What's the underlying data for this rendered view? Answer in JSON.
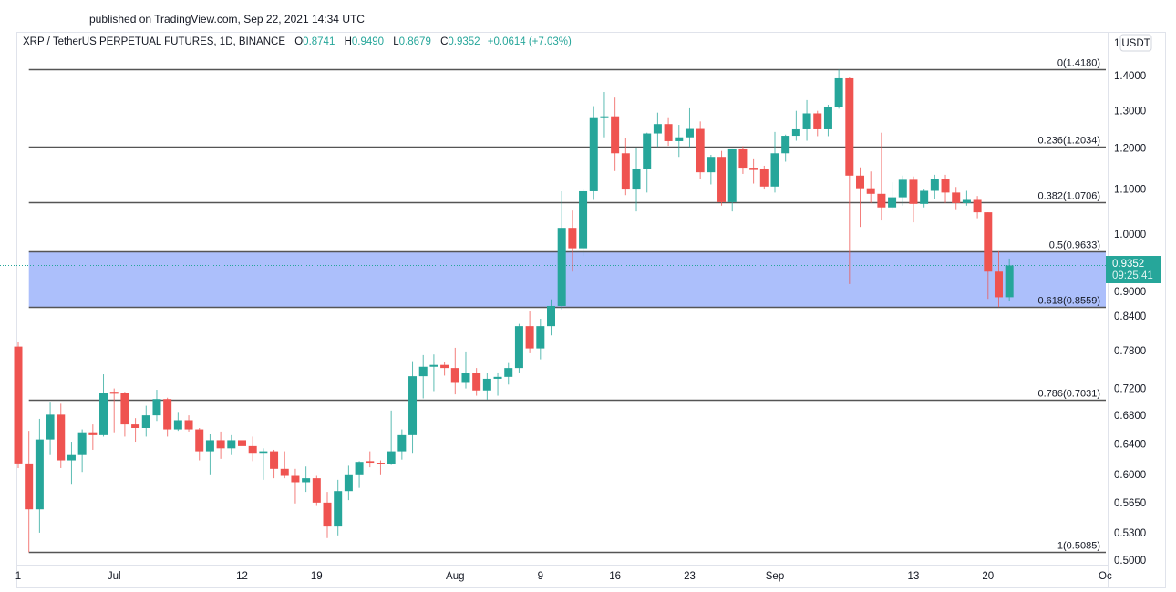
{
  "header": {
    "published": "published on TradingView.com, Sep 22, 2021 14:34 UTC"
  },
  "legend": {
    "symbol": "XRP / TetherUS PERPETUAL FUTURES, 1D, BINANCE",
    "o_label": "O",
    "o": "0.8741",
    "h_label": "H",
    "h": "0.9490",
    "l_label": "L",
    "l": "0.8679",
    "c_label": "C",
    "c": "0.9352",
    "change": "+0.0614 (+7.03%)"
  },
  "price_axis": {
    "currency_prefix": "1",
    "currency": "USDT",
    "last_price": "0.9352",
    "countdown": "09:25:41"
  },
  "colors": {
    "up": "#26a69a",
    "down": "#ef5350",
    "fib_line": "#555555",
    "fib_zone": "#a8bcfb",
    "last_price_line": "#26a69a"
  },
  "chart_data": {
    "type": "candlestick",
    "y_scale": "log",
    "ylim": [
      0.5,
      1.42
    ],
    "grid": false,
    "y_ticks": [
      "1.4000",
      "1.3000",
      "1.2000",
      "1.1000",
      "1.0000",
      "0.9000",
      "0.8400",
      "0.7800",
      "0.7200",
      "0.6800",
      "0.6400",
      "0.6000",
      "0.5650",
      "0.5300",
      "0.5000"
    ],
    "x_ticks": [
      {
        "label": "1",
        "date": "2021-06-21"
      },
      {
        "label": "Jul",
        "date": "2021-06-30"
      },
      {
        "label": "12",
        "date": "2021-07-12"
      },
      {
        "label": "19",
        "date": "2021-07-19"
      },
      {
        "label": "Aug",
        "date": "2021-08-01"
      },
      {
        "label": "9",
        "date": "2021-08-09"
      },
      {
        "label": "16",
        "date": "2021-08-16"
      },
      {
        "label": "23",
        "date": "2021-08-23"
      },
      {
        "label": "Sep",
        "date": "2021-08-31"
      },
      {
        "label": "13",
        "date": "2021-09-13"
      },
      {
        "label": "20",
        "date": "2021-09-20"
      },
      {
        "label": "Oc",
        "date": "2021-10-01"
      }
    ],
    "fib_levels": [
      {
        "label": "0(1.4180)",
        "price": 1.418
      },
      {
        "label": "0.236(1.2034)",
        "price": 1.2034
      },
      {
        "label": "0.382(1.0706)",
        "price": 1.0706
      },
      {
        "label": "0.5(0.9633)",
        "price": 0.9633
      },
      {
        "label": "0.618(0.8559)",
        "price": 0.8559
      },
      {
        "label": "0.786(0.7031)",
        "price": 0.7031
      },
      {
        "label": "1(0.5085)",
        "price": 0.5085
      }
    ],
    "fib_zone": [
      0.8559,
      0.9633
    ],
    "fib_start_date": "2021-06-22",
    "last_price": 0.9352,
    "candles_columns": [
      "date",
      "open",
      "high",
      "low",
      "close"
    ],
    "candles": [
      [
        "2021-06-21",
        0.787,
        0.795,
        0.608,
        0.614
      ],
      [
        "2021-06-22",
        0.614,
        0.658,
        0.5085,
        0.557
      ],
      [
        "2021-06-23",
        0.557,
        0.675,
        0.53,
        0.646
      ],
      [
        "2021-06-24",
        0.646,
        0.7,
        0.625,
        0.681
      ],
      [
        "2021-06-25",
        0.681,
        0.697,
        0.608,
        0.618
      ],
      [
        "2021-06-26",
        0.618,
        0.643,
        0.588,
        0.625
      ],
      [
        "2021-06-27",
        0.625,
        0.66,
        0.603,
        0.656
      ],
      [
        "2021-06-28",
        0.656,
        0.667,
        0.632,
        0.652
      ],
      [
        "2021-06-29",
        0.652,
        0.742,
        0.65,
        0.713
      ],
      [
        "2021-06-30",
        0.715,
        0.72,
        0.656,
        0.712
      ],
      [
        "2021-07-01",
        0.713,
        0.715,
        0.65,
        0.667
      ],
      [
        "2021-07-02",
        0.667,
        0.676,
        0.643,
        0.662
      ],
      [
        "2021-07-03",
        0.662,
        0.694,
        0.65,
        0.68
      ],
      [
        "2021-07-04",
        0.68,
        0.718,
        0.672,
        0.704
      ],
      [
        "2021-07-05",
        0.704,
        0.706,
        0.65,
        0.66
      ],
      [
        "2021-07-06",
        0.66,
        0.685,
        0.658,
        0.673
      ],
      [
        "2021-07-07",
        0.673,
        0.68,
        0.657,
        0.66
      ],
      [
        "2021-07-08",
        0.66,
        0.662,
        0.618,
        0.63
      ],
      [
        "2021-07-09",
        0.63,
        0.654,
        0.6,
        0.645
      ],
      [
        "2021-07-10",
        0.645,
        0.657,
        0.62,
        0.634
      ],
      [
        "2021-07-11",
        0.634,
        0.652,
        0.625,
        0.645
      ],
      [
        "2021-07-12",
        0.645,
        0.667,
        0.626,
        0.637
      ],
      [
        "2021-07-13",
        0.637,
        0.65,
        0.617,
        0.628
      ],
      [
        "2021-07-14",
        0.628,
        0.634,
        0.593,
        0.63
      ],
      [
        "2021-07-15",
        0.63,
        0.632,
        0.595,
        0.607
      ],
      [
        "2021-07-16",
        0.607,
        0.63,
        0.595,
        0.598
      ],
      [
        "2021-07-17",
        0.598,
        0.607,
        0.564,
        0.59
      ],
      [
        "2021-07-18",
        0.59,
        0.61,
        0.578,
        0.595
      ],
      [
        "2021-07-19",
        0.595,
        0.598,
        0.561,
        0.565
      ],
      [
        "2021-07-20",
        0.565,
        0.578,
        0.524,
        0.537
      ],
      [
        "2021-07-21",
        0.537,
        0.593,
        0.527,
        0.579
      ],
      [
        "2021-07-22",
        0.579,
        0.611,
        0.568,
        0.6
      ],
      [
        "2021-07-23",
        0.6,
        0.617,
        0.583,
        0.616
      ],
      [
        "2021-07-24",
        0.617,
        0.63,
        0.609,
        0.615
      ],
      [
        "2021-07-25",
        0.615,
        0.618,
        0.6,
        0.613
      ],
      [
        "2021-07-26",
        0.613,
        0.687,
        0.612,
        0.63
      ],
      [
        "2021-07-27",
        0.63,
        0.66,
        0.619,
        0.652
      ],
      [
        "2021-07-28",
        0.652,
        0.763,
        0.628,
        0.739
      ],
      [
        "2021-07-29",
        0.739,
        0.773,
        0.705,
        0.754
      ],
      [
        "2021-07-30",
        0.754,
        0.774,
        0.716,
        0.757
      ],
      [
        "2021-07-31",
        0.757,
        0.762,
        0.74,
        0.752
      ],
      [
        "2021-08-01",
        0.752,
        0.785,
        0.711,
        0.73
      ],
      [
        "2021-08-02",
        0.73,
        0.779,
        0.72,
        0.744
      ],
      [
        "2021-08-03",
        0.744,
        0.752,
        0.709,
        0.717
      ],
      [
        "2021-08-04",
        0.717,
        0.744,
        0.703,
        0.735
      ],
      [
        "2021-08-05",
        0.735,
        0.745,
        0.709,
        0.738
      ],
      [
        "2021-08-06",
        0.738,
        0.76,
        0.726,
        0.752
      ],
      [
        "2021-08-07",
        0.752,
        0.826,
        0.745,
        0.822
      ],
      [
        "2021-08-08",
        0.822,
        0.848,
        0.776,
        0.784
      ],
      [
        "2021-08-09",
        0.784,
        0.835,
        0.766,
        0.822
      ],
      [
        "2021-08-10",
        0.822,
        0.87,
        0.806,
        0.858
      ],
      [
        "2021-08-11",
        0.858,
        1.095,
        0.852,
        1.013
      ],
      [
        "2021-08-12",
        1.013,
        1.051,
        0.923,
        0.97
      ],
      [
        "2021-08-13",
        0.97,
        1.101,
        0.954,
        1.095
      ],
      [
        "2021-08-14",
        1.095,
        1.312,
        1.075,
        1.279
      ],
      [
        "2021-08-15",
        1.279,
        1.352,
        1.228,
        1.284
      ],
      [
        "2021-08-16",
        1.284,
        1.336,
        1.143,
        1.187
      ],
      [
        "2021-08-17",
        1.187,
        1.225,
        1.086,
        1.099
      ],
      [
        "2021-08-18",
        1.099,
        1.2,
        1.049,
        1.147
      ],
      [
        "2021-08-19",
        1.147,
        1.24,
        1.092,
        1.238
      ],
      [
        "2021-08-20",
        1.238,
        1.294,
        1.203,
        1.263
      ],
      [
        "2021-08-21",
        1.263,
        1.279,
        1.206,
        1.218
      ],
      [
        "2021-08-22",
        1.218,
        1.261,
        1.178,
        1.228
      ],
      [
        "2021-08-23",
        1.228,
        1.306,
        1.203,
        1.25
      ],
      [
        "2021-08-24",
        1.25,
        1.27,
        1.124,
        1.14
      ],
      [
        "2021-08-25",
        1.14,
        1.183,
        1.111,
        1.178
      ],
      [
        "2021-08-26",
        1.178,
        1.193,
        1.062,
        1.07
      ],
      [
        "2021-08-27",
        1.07,
        1.197,
        1.049,
        1.197
      ],
      [
        "2021-08-28",
        1.197,
        1.205,
        1.136,
        1.149
      ],
      [
        "2021-08-29",
        1.149,
        1.172,
        1.113,
        1.147
      ],
      [
        "2021-08-30",
        1.147,
        1.156,
        1.099,
        1.106
      ],
      [
        "2021-08-31",
        1.106,
        1.242,
        1.092,
        1.187
      ],
      [
        "2021-09-01",
        1.187,
        1.235,
        1.166,
        1.232
      ],
      [
        "2021-09-02",
        1.232,
        1.299,
        1.219,
        1.249
      ],
      [
        "2021-09-03",
        1.249,
        1.329,
        1.219,
        1.292
      ],
      [
        "2021-09-04",
        1.292,
        1.299,
        1.231,
        1.249
      ],
      [
        "2021-09-05",
        1.249,
        1.316,
        1.231,
        1.31
      ],
      [
        "2021-09-06",
        1.31,
        1.418,
        1.305,
        1.392
      ],
      [
        "2021-09-07",
        1.392,
        1.395,
        0.899,
        1.132
      ],
      [
        "2021-09-08",
        1.132,
        1.152,
        1.015,
        1.102
      ],
      [
        "2021-09-09",
        1.102,
        1.142,
        1.068,
        1.089
      ],
      [
        "2021-09-10",
        1.089,
        1.24,
        1.029,
        1.058
      ],
      [
        "2021-09-11",
        1.058,
        1.116,
        1.052,
        1.081
      ],
      [
        "2021-09-12",
        1.081,
        1.132,
        1.062,
        1.122
      ],
      [
        "2021-09-13",
        1.122,
        1.13,
        1.025,
        1.066
      ],
      [
        "2021-09-14",
        1.066,
        1.099,
        1.058,
        1.096
      ],
      [
        "2021-09-15",
        1.096,
        1.134,
        1.076,
        1.124
      ],
      [
        "2021-09-16",
        1.124,
        1.134,
        1.068,
        1.092
      ],
      [
        "2021-09-17",
        1.092,
        1.105,
        1.052,
        1.068
      ],
      [
        "2021-09-18",
        1.068,
        1.096,
        1.062,
        1.075
      ],
      [
        "2021-09-19",
        1.075,
        1.084,
        1.034,
        1.047
      ],
      [
        "2021-09-20",
        1.047,
        1.047,
        0.871,
        0.923
      ],
      [
        "2021-09-21",
        0.923,
        0.964,
        0.856,
        0.874
      ],
      [
        "2021-09-22",
        0.8741,
        0.949,
        0.8679,
        0.9352
      ]
    ]
  }
}
